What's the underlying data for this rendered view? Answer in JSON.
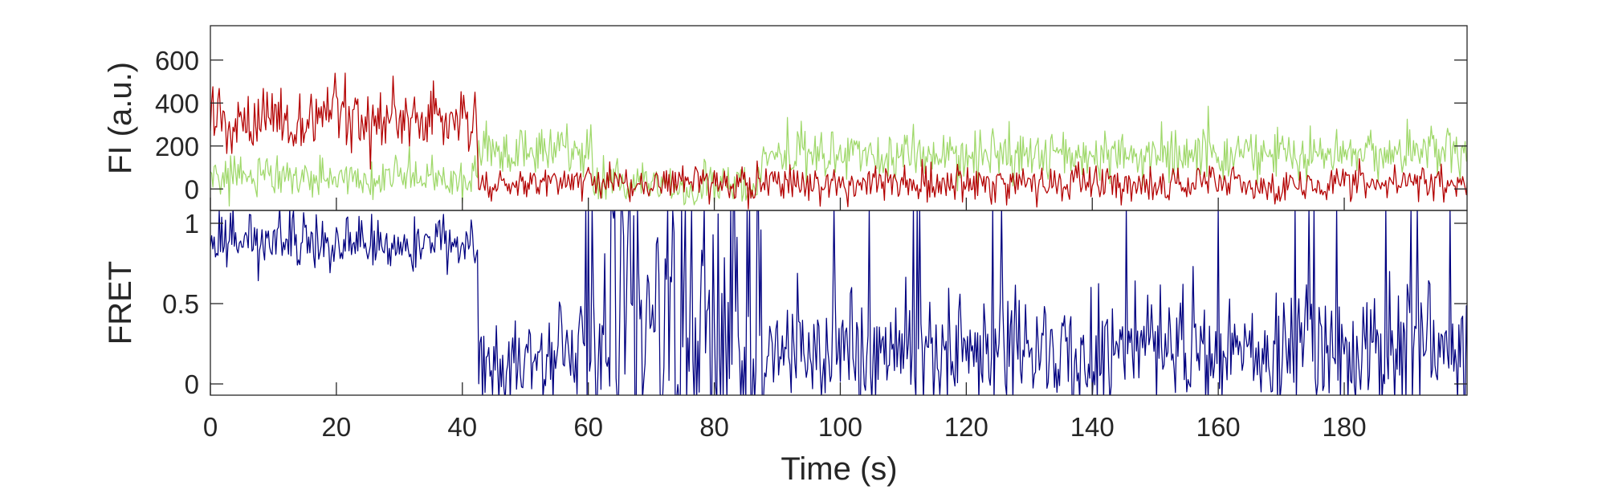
{
  "chart_data": {
    "type": "line",
    "x_range": [
      0,
      199.5
    ],
    "xlabel": "Time (s)",
    "x_ticks": [
      "0",
      "20",
      "40",
      "60",
      "80",
      "100",
      "120",
      "140",
      "160",
      "180"
    ],
    "frames": 1000,
    "frame_time_s": 0.2,
    "panels": [
      {
        "ylabel": "FI (a.u.)",
        "ylim": [
          -100,
          760
        ],
        "y_ticks": [
          "0",
          "200",
          "400",
          "600"
        ],
        "series": [
          {
            "color": "#9fd86a",
            "segments": [
              {
                "t_start": 0,
                "t_end": 42.6,
                "mean": 55,
                "noise": 45
              },
              {
                "t_start": 42.6,
                "t_end": 60.8,
                "mean": 175,
                "noise": 50
              },
              {
                "t_start": 60.8,
                "t_end": 87.5,
                "mean": 20,
                "noise": 45
              },
              {
                "t_start": 87.5,
                "t_end": 199.5,
                "mean": 160,
                "noise": 60
              }
            ]
          },
          {
            "color": "#b30000",
            "segments": [
              {
                "t_start": 0,
                "t_end": 42.6,
                "mean": 320,
                "noise": 75
              },
              {
                "t_start": 42.6,
                "t_end": 199.5,
                "mean": 25,
                "noise": 40
              }
            ]
          }
        ]
      },
      {
        "ylabel": "FRET",
        "ylim": [
          -0.07,
          1.08
        ],
        "y_ticks": [
          "0",
          "0.5",
          "1"
        ],
        "series": [
          {
            "color": "#000080",
            "segments": [
              {
                "t_start": 0,
                "t_end": 42.6,
                "mean": 0.88,
                "noise": 0.09
              },
              {
                "t_start": 42.6,
                "t_end": 60.8,
                "mean": 0.17,
                "noise": 0.15
              },
              {
                "t_start": 60.8,
                "t_end": 87.5,
                "mean": 0.45,
                "noise": 0.4
              },
              {
                "t_start": 87.5,
                "t_end": 199.5,
                "mean": 0.2,
                "noise": 0.19
              }
            ]
          }
        ]
      }
    ]
  }
}
